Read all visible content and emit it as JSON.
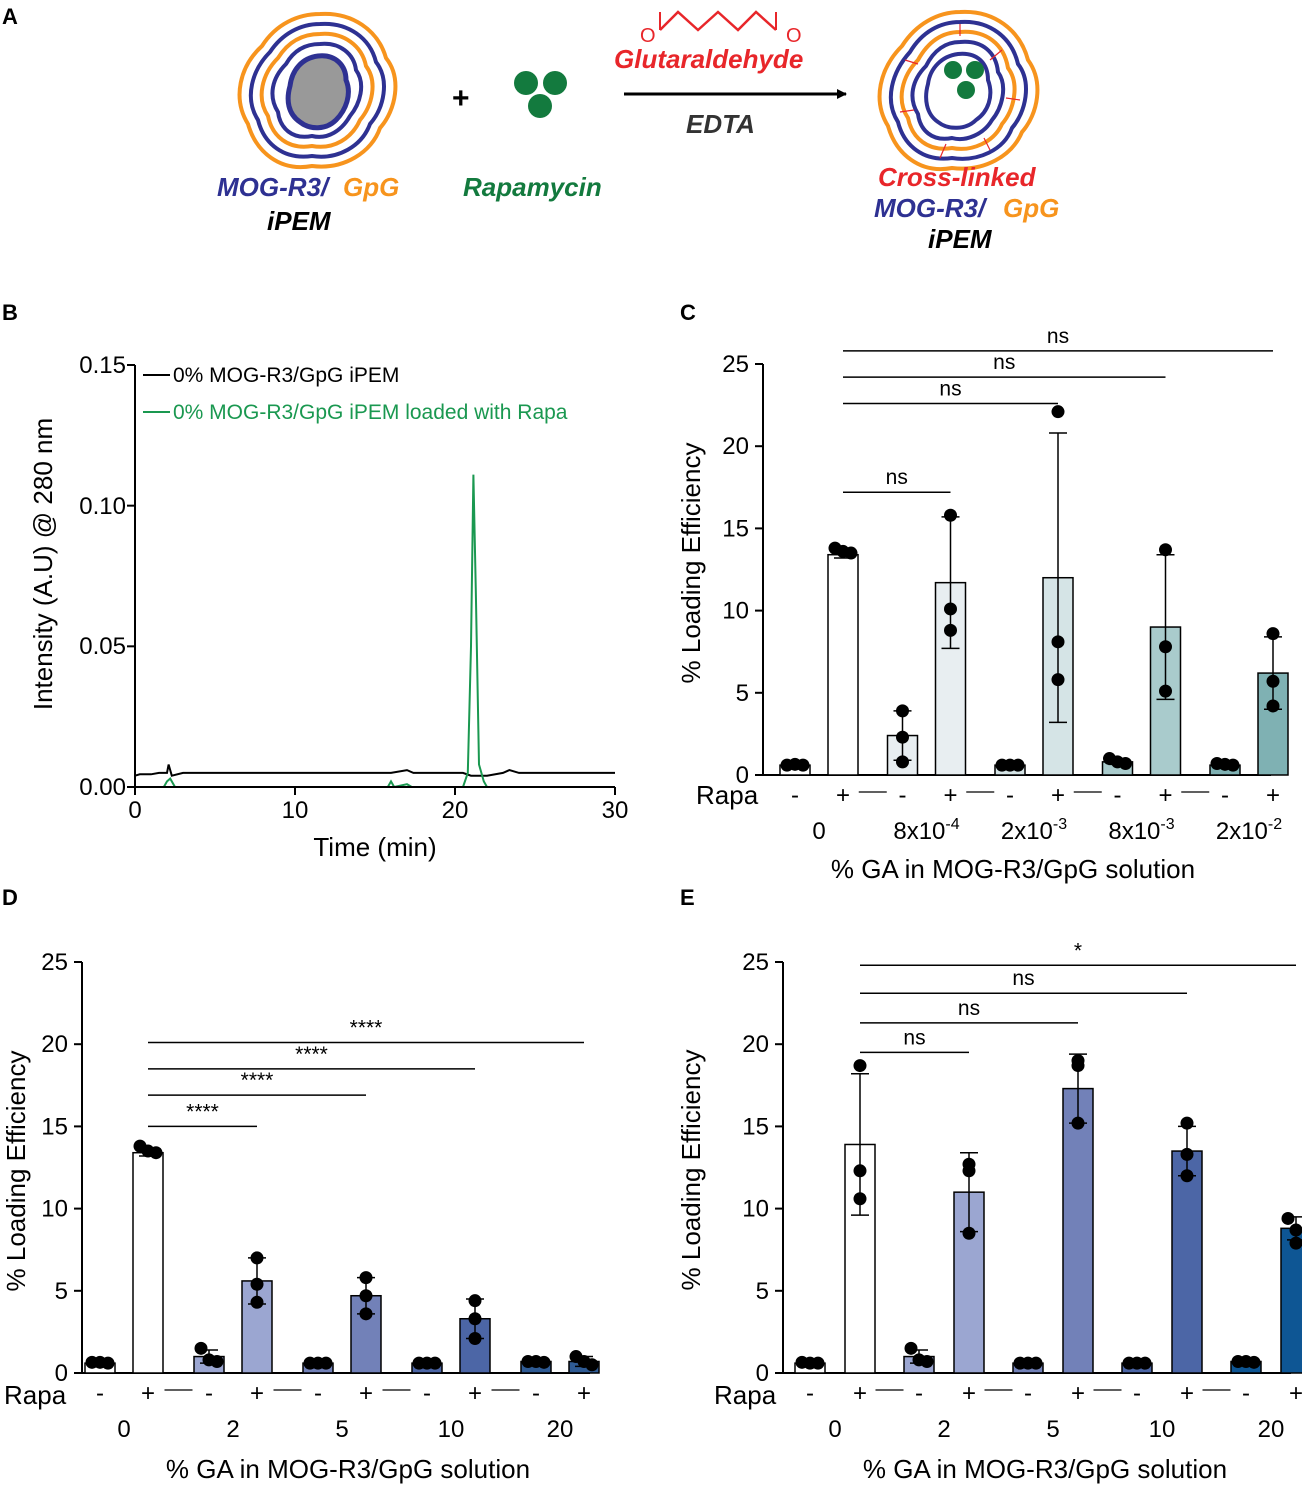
{
  "panel_labels": [
    "A",
    "B",
    "C",
    "D",
    "E"
  ],
  "schematic": {
    "left_label_blue": "MOG-R3/",
    "left_label_orange": "GpG",
    "left_label_ipem": "iPEM",
    "plus": "+",
    "rapamycin": "Rapamycin",
    "reagent_top": "Glutaraldehyde",
    "reagent_bottom": "EDTA",
    "aldehyde_o_left": "O",
    "aldehyde_o_right": "O",
    "right_label_red": "Cross-linked",
    "right_label_blue": "MOG-R3/",
    "right_label_orange": "GpG",
    "right_label_ipem": "iPEM",
    "colors": {
      "blue": "#2e3192",
      "orange": "#f7941d",
      "red": "#e8262a",
      "green": "#137a3e",
      "core": "#999999"
    }
  },
  "chart_data": [
    {
      "panel": "B",
      "type": "line",
      "xlabel": "Time (min)",
      "ylabel": "Intensity (A.U) @ 280 nm",
      "xlim": [
        0,
        30
      ],
      "ylim": [
        0,
        0.15
      ],
      "xticks": [
        0,
        10,
        20,
        30
      ],
      "yticks": [
        0.0,
        0.05,
        0.1,
        0.15
      ],
      "ytick_labels": [
        "0.00",
        "0.05",
        "0.10",
        "0.15"
      ],
      "series": [
        {
          "name": "0% MOG-R3/GpG iPEM",
          "color": "#000000",
          "points": [
            [
              0,
              0.004
            ],
            [
              0.3,
              0.0045
            ],
            [
              1,
              0.0045
            ],
            [
              1.5,
              0.005
            ],
            [
              2,
              0.005
            ],
            [
              2.1,
              0.008
            ],
            [
              2.3,
              0.004
            ],
            [
              3,
              0.005
            ],
            [
              10,
              0.005
            ],
            [
              16,
              0.005
            ],
            [
              17,
              0.006
            ],
            [
              17.4,
              0.005
            ],
            [
              20.5,
              0.005
            ],
            [
              21.0,
              0.004
            ],
            [
              22,
              0.004
            ],
            [
              23,
              0.005
            ],
            [
              23.4,
              0.006
            ],
            [
              24,
              0.005
            ],
            [
              30,
              0.005
            ]
          ]
        },
        {
          "name": "0% MOG-R3/GpG iPEM loaded with Rapa",
          "color": "#1a9850",
          "points": [
            [
              0,
              0
            ],
            [
              1.8,
              0
            ],
            [
              2.0,
              0.002
            ],
            [
              2.2,
              0.003
            ],
            [
              2.5,
              0
            ],
            [
              15.8,
              0
            ],
            [
              16,
              0.002
            ],
            [
              16.2,
              0
            ],
            [
              17,
              0.001
            ],
            [
              17.3,
              0
            ],
            [
              20.5,
              0
            ],
            [
              20.8,
              0.005
            ],
            [
              21.0,
              0.05
            ],
            [
              21.15,
              0.111
            ],
            [
              21.3,
              0.07
            ],
            [
              21.5,
              0.008
            ],
            [
              21.8,
              0.002
            ],
            [
              22,
              0
            ],
            [
              30,
              0
            ]
          ]
        }
      ]
    },
    {
      "panel": "C",
      "type": "bar",
      "ylabel": "% Loading Efficiency",
      "xlabel": "% GA in MOG-R3/GpG solution",
      "ylim": [
        0,
        25
      ],
      "yticks": [
        0,
        5,
        10,
        15,
        20,
        25
      ],
      "rapa_label": "Rapa",
      "rapa_signs": [
        "-",
        "+"
      ],
      "groups": [
        {
          "label": "0",
          "label_base": "0",
          "label_exp": "",
          "fill": "#ffffff",
          "minus": {
            "mean": 0.6,
            "sd": 0.1,
            "points": [
              0.6,
              0.65,
              0.6
            ]
          },
          "plus": {
            "mean": 13.4,
            "sd": 0.2,
            "points": [
              13.8,
              13.6,
              13.5
            ]
          }
        },
        {
          "label": "8x10-4",
          "label_base": "8x10",
          "label_exp": "-4",
          "fill": "#e8eef1",
          "minus": {
            "mean": 2.4,
            "sd": 1.5,
            "points": [
              3.9,
              2.3,
              0.8
            ]
          },
          "plus": {
            "mean": 11.7,
            "sd": 4.0,
            "points": [
              15.8,
              10.1,
              8.8
            ]
          }
        },
        {
          "label": "2x10-3",
          "label_base": "2x10",
          "label_exp": "-3",
          "fill": "#d5e4e6",
          "minus": {
            "mean": 0.6,
            "sd": 0.05,
            "points": [
              0.6,
              0.6,
              0.6
            ]
          },
          "plus": {
            "mean": 12.0,
            "sd": 8.8,
            "points": [
              22.1,
              8.1,
              5.8
            ]
          }
        },
        {
          "label": "8x10-3",
          "label_base": "8x10",
          "label_exp": "-3",
          "fill": "#a9cbcc",
          "minus": {
            "mean": 0.8,
            "sd": 0.15,
            "points": [
              1.0,
              0.8,
              0.7
            ]
          },
          "plus": {
            "mean": 9.0,
            "sd": 4.4,
            "points": [
              13.7,
              7.8,
              5.1
            ]
          }
        },
        {
          "label": "2x10-2",
          "label_base": "2x10",
          "label_exp": "-2",
          "fill": "#7fb1b3",
          "minus": {
            "mean": 0.6,
            "sd": 0.05,
            "points": [
              0.7,
              0.65,
              0.6
            ]
          },
          "plus": {
            "mean": 6.2,
            "sd": 2.2,
            "points": [
              8.6,
              5.7,
              4.2
            ]
          }
        }
      ],
      "comparisons": [
        {
          "from": 0,
          "to": 1,
          "label": "ns",
          "y": 17.2
        },
        {
          "from": 0,
          "to": 2,
          "label": "ns",
          "y": 22.6
        },
        {
          "from": 0,
          "to": 3,
          "label": "ns",
          "y": 24.2
        },
        {
          "from": 0,
          "to": 4,
          "label": "ns",
          "y": 25.8
        }
      ]
    },
    {
      "panel": "D",
      "type": "bar",
      "ylabel": "% Loading Efficiency",
      "xlabel": "% GA in MOG-R3/GpG solution",
      "ylim": [
        0,
        25
      ],
      "yticks": [
        0,
        5,
        10,
        15,
        20,
        25
      ],
      "rapa_label": "Rapa",
      "rapa_signs": [
        "-",
        "+"
      ],
      "groups": [
        {
          "label": "0",
          "label_base": "0",
          "label_exp": "",
          "fill": "#ffffff",
          "minus": {
            "mean": 0.6,
            "sd": 0.1,
            "points": [
              0.65,
              0.65,
              0.6
            ]
          },
          "plus": {
            "mean": 13.4,
            "sd": 0.2,
            "points": [
              13.8,
              13.5,
              13.4
            ]
          }
        },
        {
          "label": "2",
          "label_base": "2",
          "label_exp": "",
          "fill": "#9ba6d1",
          "minus": {
            "mean": 1.0,
            "sd": 0.4,
            "points": [
              1.5,
              0.8,
              0.7
            ]
          },
          "plus": {
            "mean": 5.6,
            "sd": 1.4,
            "points": [
              7.0,
              5.4,
              4.3
            ]
          }
        },
        {
          "label": "5",
          "label_base": "5",
          "label_exp": "",
          "fill": "#7281b8",
          "minus": {
            "mean": 0.6,
            "sd": 0.05,
            "points": [
              0.6,
              0.6,
              0.6
            ]
          },
          "plus": {
            "mean": 4.7,
            "sd": 1.1,
            "points": [
              5.8,
              4.7,
              3.6
            ]
          }
        },
        {
          "label": "10",
          "label_base": "10",
          "label_exp": "",
          "fill": "#4c66a6",
          "minus": {
            "mean": 0.6,
            "sd": 0.05,
            "points": [
              0.6,
              0.6,
              0.6
            ]
          },
          "plus": {
            "mean": 3.3,
            "sd": 1.2,
            "points": [
              4.4,
              3.3,
              2.1
            ]
          }
        },
        {
          "label": "20",
          "label_base": "20",
          "label_exp": "",
          "fill": "#2f5b94",
          "minus": {
            "mean": 0.7,
            "sd": 0.05,
            "points": [
              0.7,
              0.7,
              0.65
            ]
          },
          "plus": {
            "mean": 0.7,
            "sd": 0.3,
            "points": [
              1.0,
              0.7,
              0.5
            ]
          }
        }
      ],
      "comparisons": [
        {
          "from": 0,
          "to": 1,
          "label": "****",
          "y": 15.0
        },
        {
          "from": 0,
          "to": 2,
          "label": "****",
          "y": 16.9
        },
        {
          "from": 0,
          "to": 3,
          "label": "****",
          "y": 18.5
        },
        {
          "from": 0,
          "to": 4,
          "label": "****",
          "y": 20.1
        }
      ]
    },
    {
      "panel": "E",
      "type": "bar",
      "ylabel": "% Loading Efficiency",
      "xlabel": "% GA in MOG-R3/GpG solution",
      "ylim": [
        0,
        25
      ],
      "yticks": [
        0,
        5,
        10,
        15,
        20,
        25
      ],
      "rapa_label": "Rapa",
      "rapa_signs": [
        "-",
        "+"
      ],
      "groups": [
        {
          "label": "0",
          "label_base": "0",
          "label_exp": "",
          "fill": "#ffffff",
          "minus": {
            "mean": 0.6,
            "sd": 0.1,
            "points": [
              0.65,
              0.6,
              0.6
            ]
          },
          "plus": {
            "mean": 13.9,
            "sd": 4.3,
            "points": [
              18.7,
              12.3,
              10.6
            ]
          }
        },
        {
          "label": "2",
          "label_base": "2",
          "label_exp": "",
          "fill": "#9ba6d1",
          "minus": {
            "mean": 1.0,
            "sd": 0.4,
            "points": [
              1.5,
              0.8,
              0.7
            ]
          },
          "plus": {
            "mean": 11.0,
            "sd": 2.4,
            "points": [
              12.7,
              12.3,
              8.5
            ]
          }
        },
        {
          "label": "5",
          "label_base": "5",
          "label_exp": "",
          "fill": "#7281b8",
          "minus": {
            "mean": 0.6,
            "sd": 0.05,
            "points": [
              0.6,
              0.6,
              0.6
            ]
          },
          "plus": {
            "mean": 17.3,
            "sd": 2.1,
            "points": [
              19.0,
              18.7,
              15.2
            ]
          }
        },
        {
          "label": "10",
          "label_base": "10",
          "label_exp": "",
          "fill": "#4c66a6",
          "minus": {
            "mean": 0.6,
            "sd": 0.05,
            "points": [
              0.6,
              0.6,
              0.6
            ]
          },
          "plus": {
            "mean": 13.5,
            "sd": 1.5,
            "points": [
              15.2,
              13.3,
              12.0
            ]
          }
        },
        {
          "label": "20",
          "label_base": "20",
          "label_exp": "",
          "fill": "#0e5694",
          "minus": {
            "mean": 0.7,
            "sd": 0.05,
            "points": [
              0.7,
              0.7,
              0.65
            ]
          },
          "plus": {
            "mean": 8.8,
            "sd": 0.7,
            "points": [
              9.4,
              8.7,
              7.9
            ]
          }
        }
      ],
      "comparisons": [
        {
          "from": 0,
          "to": 1,
          "label": "ns",
          "y": 19.5
        },
        {
          "from": 0,
          "to": 2,
          "label": "ns",
          "y": 21.3
        },
        {
          "from": 0,
          "to": 3,
          "label": "ns",
          "y": 23.1
        },
        {
          "from": 0,
          "to": 4,
          "label": "*",
          "y": 24.8
        }
      ]
    }
  ]
}
